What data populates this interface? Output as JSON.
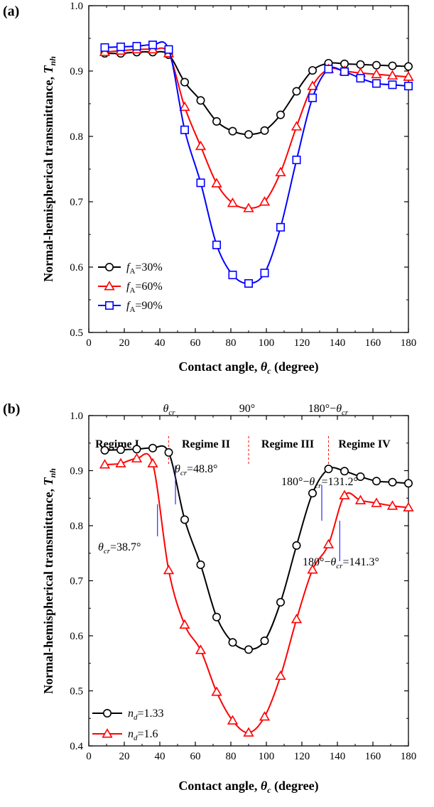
{
  "panels": [
    {
      "label": "(a)",
      "xlabel": "Contact angle, θc (degree)",
      "ylabel": "Normal-hemispherical transmittance, Tnh",
      "x_ticks": [
        "0",
        "20",
        "40",
        "60",
        "80",
        "100",
        "120",
        "140",
        "160",
        "180"
      ],
      "y_ticks": [
        "0.5",
        "0.6",
        "0.7",
        "0.8",
        "0.9",
        "1.0"
      ],
      "legend": [
        "fA=30%",
        "fA=60%",
        "fA=90%"
      ]
    },
    {
      "label": "(b)",
      "xlabel": "Contact angle, θc (degree)",
      "ylabel": "Normal-hemispherical transmittance, Tnh",
      "x_ticks": [
        "0",
        "20",
        "40",
        "60",
        "80",
        "100",
        "120",
        "140",
        "160",
        "180"
      ],
      "y_ticks": [
        "0.4",
        "0.5",
        "0.6",
        "0.7",
        "0.8",
        "0.9",
        "1.0"
      ],
      "legend": [
        "nd=1.33",
        "nd=1.6"
      ],
      "regimes": [
        "Regime I",
        "Regime II",
        "Regime III",
        "Regime IV"
      ],
      "boundaries": [
        "θcr",
        "90°",
        "180°−θcr"
      ],
      "annotations": [
        "θcr=48.8°",
        "θcr=38.7°",
        "180°−θcr=131.2°",
        "180°−θcr=141.3°"
      ]
    }
  ],
  "chart_data": [
    {
      "type": "line",
      "title": "(a)",
      "xlabel": "Contact angle, θc (degree)",
      "ylabel": "Normal-hemispherical transmittance, Tnh",
      "xlim": [
        0,
        180
      ],
      "ylim": [
        0.5,
        1.0
      ],
      "legend_position": "bottom-left",
      "series": [
        {
          "name": "fA=30%",
          "color": "#000000",
          "marker": "circle",
          "points": [
            [
              9,
              0.927
            ],
            [
              18,
              0.927
            ],
            [
              27,
              0.929
            ],
            [
              36,
              0.929
            ],
            [
              45,
              0.925
            ],
            [
              54,
              0.883
            ],
            [
              63,
              0.855
            ],
            [
              72,
              0.823
            ],
            [
              81,
              0.808
            ],
            [
              90,
              0.803
            ],
            [
              99,
              0.809
            ],
            [
              108,
              0.833
            ],
            [
              117,
              0.869
            ],
            [
              126,
              0.901
            ],
            [
              135,
              0.912
            ],
            [
              144,
              0.911
            ],
            [
              153,
              0.91
            ],
            [
              162,
              0.909
            ],
            [
              171,
              0.908
            ],
            [
              180,
              0.907
            ]
          ]
        },
        {
          "name": "fA=60%",
          "color": "#ff0000",
          "marker": "triangle",
          "points": [
            [
              9,
              0.929
            ],
            [
              18,
              0.931
            ],
            [
              27,
              0.933
            ],
            [
              36,
              0.933
            ],
            [
              45,
              0.927
            ],
            [
              54,
              0.845
            ],
            [
              63,
              0.785
            ],
            [
              72,
              0.728
            ],
            [
              81,
              0.698
            ],
            [
              90,
              0.69
            ],
            [
              99,
              0.7
            ],
            [
              108,
              0.745
            ],
            [
              117,
              0.815
            ],
            [
              126,
              0.877
            ],
            [
              135,
              0.903
            ],
            [
              144,
              0.9
            ],
            [
              153,
              0.897
            ],
            [
              162,
              0.895
            ],
            [
              171,
              0.893
            ],
            [
              180,
              0.891
            ]
          ]
        },
        {
          "name": "fA=90%",
          "color": "#0000ff",
          "marker": "square",
          "points": [
            [
              9,
              0.936
            ],
            [
              18,
              0.937
            ],
            [
              27,
              0.938
            ],
            [
              36,
              0.94
            ],
            [
              45,
              0.933
            ],
            [
              54,
              0.81
            ],
            [
              63,
              0.729
            ],
            [
              72,
              0.634
            ],
            [
              81,
              0.588
            ],
            [
              90,
              0.575
            ],
            [
              99,
              0.591
            ],
            [
              108,
              0.661
            ],
            [
              117,
              0.764
            ],
            [
              126,
              0.859
            ],
            [
              135,
              0.903
            ],
            [
              144,
              0.899
            ],
            [
              153,
              0.889
            ],
            [
              162,
              0.881
            ],
            [
              171,
              0.879
            ],
            [
              180,
              0.877
            ]
          ]
        }
      ]
    },
    {
      "type": "line",
      "title": "(b)",
      "xlabel": "Contact angle, θc (degree)",
      "ylabel": "Normal-hemispherical transmittance, Tnh",
      "xlim": [
        0,
        180
      ],
      "ylim": [
        0.4,
        1.0
      ],
      "legend_position": "bottom-left",
      "series": [
        {
          "name": "nd=1.33",
          "color": "#000000",
          "marker": "circle",
          "points": [
            [
              9,
              0.937
            ],
            [
              18,
              0.938
            ],
            [
              27,
              0.939
            ],
            [
              36,
              0.941
            ],
            [
              45,
              0.933
            ],
            [
              54,
              0.811
            ],
            [
              63,
              0.729
            ],
            [
              72,
              0.634
            ],
            [
              81,
              0.588
            ],
            [
              90,
              0.575
            ],
            [
              99,
              0.591
            ],
            [
              108,
              0.661
            ],
            [
              117,
              0.764
            ],
            [
              126,
              0.859
            ],
            [
              135,
              0.903
            ],
            [
              144,
              0.899
            ],
            [
              153,
              0.889
            ],
            [
              162,
              0.881
            ],
            [
              171,
              0.879
            ],
            [
              180,
              0.877
            ]
          ]
        },
        {
          "name": "nd=1.6",
          "color": "#ff0000",
          "marker": "triangle",
          "points": [
            [
              9,
              0.911
            ],
            [
              18,
              0.913
            ],
            [
              27,
              0.922
            ],
            [
              36,
              0.913
            ],
            [
              45,
              0.719
            ],
            [
              54,
              0.62
            ],
            [
              63,
              0.574
            ],
            [
              72,
              0.498
            ],
            [
              81,
              0.446
            ],
            [
              90,
              0.424
            ],
            [
              99,
              0.453
            ],
            [
              108,
              0.527
            ],
            [
              117,
              0.63
            ],
            [
              126,
              0.72
            ],
            [
              135,
              0.766
            ],
            [
              144,
              0.855
            ],
            [
              153,
              0.846
            ],
            [
              162,
              0.841
            ],
            [
              171,
              0.836
            ],
            [
              180,
              0.833
            ]
          ]
        }
      ],
      "vertical_markers": [
        {
          "label": "θcr=48.8°",
          "x": 48.8
        },
        {
          "label": "θcr=38.7°",
          "x": 38.7
        },
        {
          "label": "180°−θcr=131.2°",
          "x": 131.2
        },
        {
          "label": "180°−θcr=141.3°",
          "x": 141.3
        }
      ],
      "regime_boundaries": [
        45,
        90,
        135
      ]
    }
  ]
}
